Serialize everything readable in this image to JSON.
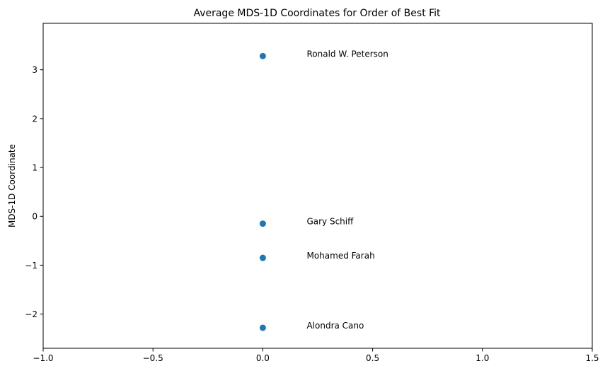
{
  "chart_data": {
    "type": "scatter",
    "title": "Average MDS-1D Coordinates for Order of Best Fit",
    "xlabel": "",
    "ylabel": "MDS-1D Coordinate",
    "xlim": [
      -1.0,
      1.5
    ],
    "ylim": [
      -2.7,
      3.95
    ],
    "x_ticks": [
      -1.0,
      -0.5,
      0.0,
      0.5,
      1.0,
      1.5
    ],
    "x_tick_labels": [
      "−1.0",
      "−0.5",
      "0.0",
      "0.5",
      "1.0",
      "1.5"
    ],
    "y_ticks": [
      -2,
      -1,
      0,
      1,
      2,
      3
    ],
    "y_tick_labels": [
      "−2",
      "−1",
      "0",
      "1",
      "2",
      "3"
    ],
    "grid": false,
    "legend": "none",
    "color": "#1f77b4",
    "points": [
      {
        "x": 0.0,
        "y": 3.28,
        "label": "Ronald W. Peterson"
      },
      {
        "x": 0.0,
        "y": -0.15,
        "label": "Gary Schiff"
      },
      {
        "x": 0.0,
        "y": -0.85,
        "label": "Mohamed Farah"
      },
      {
        "x": 0.0,
        "y": -2.28,
        "label": "Alondra Cano"
      }
    ],
    "annotation_offset_x": 0.2
  }
}
